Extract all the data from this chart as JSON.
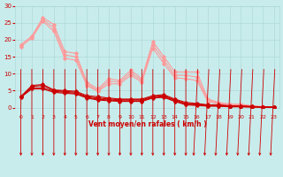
{
  "xlabel": "Vent moyen/en rafales ( km/h )",
  "xlim": [
    -0.5,
    23.5
  ],
  "ylim": [
    0,
    30
  ],
  "xticks": [
    0,
    1,
    2,
    3,
    4,
    5,
    6,
    7,
    8,
    9,
    10,
    11,
    12,
    13,
    14,
    15,
    16,
    17,
    18,
    19,
    20,
    21,
    22,
    23
  ],
  "yticks": [
    0,
    5,
    10,
    15,
    20,
    25,
    30
  ],
  "bg_color": "#c8ecec",
  "grid_color": "#b0d8d8",
  "line_color_dark": "#cc0000",
  "line_color_light": "#ff9999",
  "series_light": [
    [
      18.5,
      21.0,
      26.5,
      24.5,
      16.5,
      16.0,
      7.5,
      5.5,
      8.5,
      8.0,
      11.0,
      8.5,
      19.5,
      15.0,
      10.5,
      10.5,
      10.5,
      2.5,
      1.5,
      1.0,
      1.0,
      0.5,
      0.3,
      0.2
    ],
    [
      18.5,
      21.0,
      26.0,
      23.5,
      15.5,
      15.0,
      7.0,
      5.0,
      7.8,
      7.5,
      10.2,
      8.0,
      18.5,
      14.0,
      9.5,
      9.5,
      9.0,
      2.2,
      1.3,
      0.9,
      0.9,
      0.4,
      0.2,
      0.1
    ],
    [
      18.0,
      20.5,
      25.5,
      22.5,
      14.5,
      14.0,
      6.5,
      4.8,
      7.0,
      7.0,
      9.5,
      7.5,
      17.5,
      13.0,
      8.8,
      8.5,
      8.0,
      1.8,
      1.1,
      0.7,
      0.7,
      0.3,
      0.2,
      0.1
    ]
  ],
  "series_dark": [
    [
      3.2,
      6.5,
      6.8,
      5.2,
      5.0,
      4.8,
      3.5,
      3.2,
      2.8,
      2.5,
      2.5,
      2.5,
      3.5,
      3.8,
      2.5,
      1.5,
      1.2,
      0.8,
      0.8,
      0.5,
      0.5,
      0.3,
      0.2,
      0.1
    ],
    [
      3.2,
      6.2,
      6.5,
      5.0,
      4.8,
      4.5,
      3.2,
      2.8,
      2.5,
      2.3,
      2.3,
      2.3,
      3.2,
      3.5,
      2.2,
      1.2,
      1.0,
      0.7,
      0.7,
      0.4,
      0.4,
      0.3,
      0.2,
      0.1
    ],
    [
      3.2,
      5.8,
      5.8,
      4.8,
      4.5,
      4.2,
      3.0,
      2.5,
      2.2,
      2.0,
      2.0,
      2.0,
      3.0,
      3.2,
      2.0,
      1.0,
      0.8,
      0.5,
      0.5,
      0.3,
      0.3,
      0.2,
      0.1,
      0.05
    ],
    [
      3.0,
      5.5,
      5.5,
      4.5,
      4.2,
      4.0,
      2.8,
      2.2,
      2.0,
      1.8,
      1.8,
      1.8,
      2.8,
      3.0,
      1.8,
      0.8,
      0.6,
      0.4,
      0.4,
      0.2,
      0.2,
      0.1,
      0.1,
      0.05
    ]
  ],
  "arrow_down_count": 16,
  "figsize": [
    3.2,
    2.0
  ],
  "dpi": 100
}
